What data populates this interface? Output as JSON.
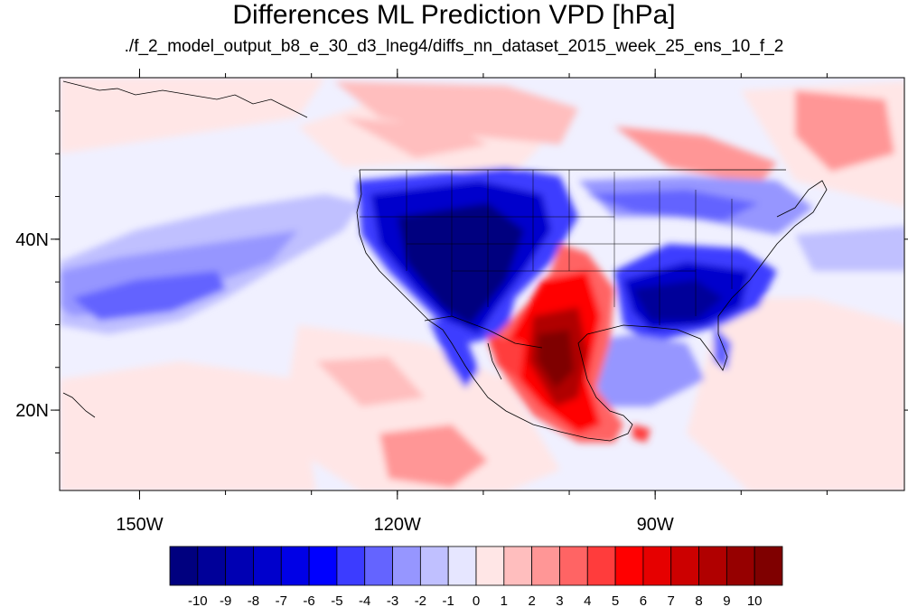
{
  "title": "Differences ML Prediction VPD [hPa]",
  "subtitle": "./f_2_model_output_b8_e_30_d3_lneg4/diffs_nn_dataset_2015_week_25_ens_10_f_2",
  "map": {
    "x_ticks": [
      {
        "lon": -150,
        "label": "150W"
      },
      {
        "lon": -120,
        "label": "120W"
      },
      {
        "lon": -90,
        "label": "90W"
      }
    ],
    "y_ticks": [
      {
        "lat": 40,
        "label": "40N"
      },
      {
        "lat": 20,
        "label": "20N"
      }
    ],
    "lon_range": [
      -159.3,
      -61.0
    ],
    "lat_range": [
      10.6,
      58.9
    ],
    "colorbar": {
      "labels": [
        "-10",
        "-9",
        "-8",
        "-7",
        "-6",
        "-5",
        "-4",
        "-3",
        "-2",
        "-1",
        "0",
        "1",
        "2",
        "3",
        "4",
        "5",
        "6",
        "7",
        "8",
        "9",
        "10"
      ],
      "colors": [
        "#00007f",
        "#000099",
        "#0000b3",
        "#0000cc",
        "#0000e6",
        "#0000ff",
        "#3c3cff",
        "#6464ff",
        "#9696ff",
        "#c0c0ff",
        "#e6e6ff",
        "#ffe6e6",
        "#ffbebe",
        "#ff9696",
        "#ff6464",
        "#ff3c3c",
        "#ff0000",
        "#e60000",
        "#cc0000",
        "#b00000",
        "#960000",
        "#7f0000"
      ]
    }
  }
}
